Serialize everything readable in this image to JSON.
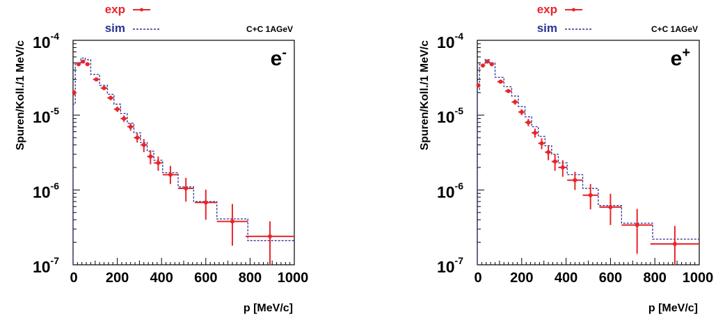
{
  "chart_data": [
    {
      "type": "scatter",
      "ylabel": "Spuren/Koll./1 MeV/c",
      "xlabel": "p [MeV/c]",
      "annotation": "C+C 1AGeV",
      "particle": {
        "base": "e",
        "sup": "-"
      },
      "xlim": [
        0,
        1000
      ],
      "ylim": [
        1e-07,
        0.0001
      ],
      "yscale": "log",
      "xticks": [
        "0",
        "200",
        "400",
        "600",
        "800",
        "1000"
      ],
      "yticks": [
        {
          "base": "10",
          "exp": "-4"
        },
        {
          "base": "10",
          "exp": "-5"
        },
        {
          "base": "10",
          "exp": "-6"
        },
        {
          "base": "10",
          "exp": "-7"
        }
      ],
      "legend": {
        "placement": "top",
        "entries": [
          {
            "label": "exp",
            "color": "#e8252a",
            "style": "points-with-errors"
          },
          {
            "label": "sim",
            "color": "#2e3192",
            "style": "dashed-histogram"
          }
        ]
      },
      "series": [
        {
          "name": "exp",
          "color": "#e8252a",
          "points": [
            {
              "x": 5,
              "y": 2e-05,
              "xerr": 5,
              "yerr_lo": 1.5e-06,
              "yerr_hi": 1.5e-06
            },
            {
              "x": 25,
              "y": 4.8e-05,
              "xerr": 10,
              "yerr_lo": 2e-06,
              "yerr_hi": 2e-06
            },
            {
              "x": 45,
              "y": 5.2e-05,
              "xerr": 10,
              "yerr_lo": 2e-06,
              "yerr_hi": 2e-06
            },
            {
              "x": 65,
              "y": 4.8e-05,
              "xerr": 10,
              "yerr_lo": 2e-06,
              "yerr_hi": 2e-06
            },
            {
              "x": 105,
              "y": 3e-05,
              "xerr": 15,
              "yerr_lo": 1.5e-06,
              "yerr_hi": 1.5e-06
            },
            {
              "x": 140,
              "y": 2.3e-05,
              "xerr": 15,
              "yerr_lo": 1.2e-06,
              "yerr_hi": 1.2e-06
            },
            {
              "x": 170,
              "y": 1.7e-05,
              "xerr": 15,
              "yerr_lo": 1.2e-06,
              "yerr_hi": 1.2e-06
            },
            {
              "x": 200,
              "y": 1.2e-05,
              "xerr": 15,
              "yerr_lo": 1e-06,
              "yerr_hi": 1e-06
            },
            {
              "x": 230,
              "y": 9e-06,
              "xerr": 15,
              "yerr_lo": 9e-07,
              "yerr_hi": 9e-07
            },
            {
              "x": 260,
              "y": 7e-06,
              "xerr": 15,
              "yerr_lo": 8e-07,
              "yerr_hi": 8e-07
            },
            {
              "x": 290,
              "y": 5e-06,
              "xerr": 15,
              "yerr_lo": 7e-07,
              "yerr_hi": 7e-07
            },
            {
              "x": 320,
              "y": 4e-06,
              "xerr": 15,
              "yerr_lo": 8e-07,
              "yerr_hi": 8e-07
            },
            {
              "x": 350,
              "y": 2.8e-06,
              "xerr": 15,
              "yerr_lo": 6e-07,
              "yerr_hi": 6e-07
            },
            {
              "x": 385,
              "y": 2.3e-06,
              "xerr": 20,
              "yerr_lo": 5e-07,
              "yerr_hi": 5e-07
            },
            {
              "x": 440,
              "y": 1.6e-06,
              "xerr": 35,
              "yerr_lo": 4e-07,
              "yerr_hi": 5e-07
            },
            {
              "x": 510,
              "y": 1.05e-06,
              "xerr": 35,
              "yerr_lo": 3.5e-07,
              "yerr_hi": 4e-07
            },
            {
              "x": 600,
              "y": 6.8e-07,
              "xerr": 50,
              "yerr_lo": 2.8e-07,
              "yerr_hi": 3.3e-07
            },
            {
              "x": 720,
              "y": 3.8e-07,
              "xerr": 70,
              "yerr_lo": 2e-07,
              "yerr_hi": 2.7e-07
            },
            {
              "x": 890,
              "y": 2.4e-07,
              "xerr": 110,
              "yerr_lo": 1.4e-07,
              "yerr_hi": 1.4e-07
            }
          ]
        },
        {
          "name": "sim",
          "color": "#2e3192",
          "bins": [
            {
              "lo": 0,
              "hi": 10,
              "y": 1.4e-05
            },
            {
              "lo": 10,
              "hi": 35,
              "y": 5e-05
            },
            {
              "lo": 35,
              "hi": 55,
              "y": 5.8e-05
            },
            {
              "lo": 55,
              "hi": 80,
              "y": 5.5e-05
            },
            {
              "lo": 80,
              "hi": 120,
              "y": 3.5e-05
            },
            {
              "lo": 120,
              "hi": 155,
              "y": 2.5e-05
            },
            {
              "lo": 155,
              "hi": 185,
              "y": 1.9e-05
            },
            {
              "lo": 185,
              "hi": 215,
              "y": 1.4e-05
            },
            {
              "lo": 215,
              "hi": 245,
              "y": 1.05e-05
            },
            {
              "lo": 245,
              "hi": 275,
              "y": 7.8e-06
            },
            {
              "lo": 275,
              "hi": 305,
              "y": 5.8e-06
            },
            {
              "lo": 305,
              "hi": 335,
              "y": 4.3e-06
            },
            {
              "lo": 335,
              "hi": 365,
              "y": 3.3e-06
            },
            {
              "lo": 365,
              "hi": 405,
              "y": 2.5e-06
            },
            {
              "lo": 405,
              "hi": 475,
              "y": 1.7e-06
            },
            {
              "lo": 475,
              "hi": 545,
              "y": 1.1e-06
            },
            {
              "lo": 545,
              "hi": 650,
              "y": 7e-07
            },
            {
              "lo": 650,
              "hi": 790,
              "y": 4.1e-07
            },
            {
              "lo": 790,
              "hi": 1000,
              "y": 2.1e-07
            }
          ]
        }
      ]
    },
    {
      "type": "scatter",
      "ylabel": "Spuren/Koll./1 MeV/c",
      "xlabel": "p [MeV/c]",
      "annotation": "C+C 1AGeV",
      "particle": {
        "base": "e",
        "sup": "+"
      },
      "xlim": [
        0,
        1000
      ],
      "ylim": [
        1e-07,
        0.0001
      ],
      "yscale": "log",
      "xticks": [
        "0",
        "200",
        "400",
        "600",
        "800",
        "1000"
      ],
      "yticks": [
        {
          "base": "10",
          "exp": "-4"
        },
        {
          "base": "10",
          "exp": "-5"
        },
        {
          "base": "10",
          "exp": "-6"
        },
        {
          "base": "10",
          "exp": "-7"
        }
      ],
      "legend": {
        "placement": "top",
        "entries": [
          {
            "label": "exp",
            "color": "#e8252a",
            "style": "points-with-errors"
          },
          {
            "label": "sim",
            "color": "#2e3192",
            "style": "dashed-histogram"
          }
        ]
      },
      "series": [
        {
          "name": "exp",
          "color": "#e8252a",
          "points": [
            {
              "x": 5,
              "y": 2.5e-05,
              "xerr": 5,
              "yerr_lo": 1.5e-06,
              "yerr_hi": 1.5e-06
            },
            {
              "x": 25,
              "y": 4.6e-05,
              "xerr": 10,
              "yerr_lo": 2e-06,
              "yerr_hi": 2e-06
            },
            {
              "x": 45,
              "y": 5.2e-05,
              "xerr": 10,
              "yerr_lo": 2e-06,
              "yerr_hi": 2e-06
            },
            {
              "x": 65,
              "y": 4.8e-05,
              "xerr": 10,
              "yerr_lo": 2e-06,
              "yerr_hi": 2e-06
            },
            {
              "x": 105,
              "y": 2.8e-05,
              "xerr": 15,
              "yerr_lo": 1.5e-06,
              "yerr_hi": 1.5e-06
            },
            {
              "x": 140,
              "y": 2.1e-05,
              "xerr": 15,
              "yerr_lo": 1.2e-06,
              "yerr_hi": 1.2e-06
            },
            {
              "x": 170,
              "y": 1.5e-05,
              "xerr": 15,
              "yerr_lo": 1.2e-06,
              "yerr_hi": 1.2e-06
            },
            {
              "x": 200,
              "y": 1.1e-05,
              "xerr": 15,
              "yerr_lo": 1e-06,
              "yerr_hi": 1e-06
            },
            {
              "x": 230,
              "y": 8e-06,
              "xerr": 15,
              "yerr_lo": 9e-07,
              "yerr_hi": 9e-07
            },
            {
              "x": 260,
              "y": 5.8e-06,
              "xerr": 15,
              "yerr_lo": 8e-07,
              "yerr_hi": 8e-07
            },
            {
              "x": 290,
              "y": 4.2e-06,
              "xerr": 15,
              "yerr_lo": 7e-07,
              "yerr_hi": 7e-07
            },
            {
              "x": 320,
              "y": 3.2e-06,
              "xerr": 15,
              "yerr_lo": 7e-07,
              "yerr_hi": 7e-07
            },
            {
              "x": 350,
              "y": 2.4e-06,
              "xerr": 15,
              "yerr_lo": 6e-07,
              "yerr_hi": 6e-07
            },
            {
              "x": 385,
              "y": 2e-06,
              "xerr": 20,
              "yerr_lo": 5e-07,
              "yerr_hi": 5e-07
            },
            {
              "x": 440,
              "y": 1.35e-06,
              "xerr": 35,
              "yerr_lo": 3.5e-07,
              "yerr_hi": 4e-07
            },
            {
              "x": 510,
              "y": 8.5e-07,
              "xerr": 35,
              "yerr_lo": 3e-07,
              "yerr_hi": 3.5e-07
            },
            {
              "x": 600,
              "y": 5.9e-07,
              "xerr": 50,
              "yerr_lo": 2.5e-07,
              "yerr_hi": 3e-07
            },
            {
              "x": 720,
              "y": 3.4e-07,
              "xerr": 70,
              "yerr_lo": 2e-07,
              "yerr_hi": 2.2e-07
            },
            {
              "x": 890,
              "y": 1.9e-07,
              "xerr": 110,
              "yerr_lo": 1e-07,
              "yerr_hi": 1.4e-07
            }
          ]
        },
        {
          "name": "sim",
          "color": "#2e3192",
          "bins": [
            {
              "lo": 0,
              "hi": 10,
              "y": 2.2e-05
            },
            {
              "lo": 10,
              "hi": 35,
              "y": 4.8e-05
            },
            {
              "lo": 35,
              "hi": 55,
              "y": 5.5e-05
            },
            {
              "lo": 55,
              "hi": 80,
              "y": 5e-05
            },
            {
              "lo": 80,
              "hi": 120,
              "y": 3.2e-05
            },
            {
              "lo": 120,
              "hi": 155,
              "y": 2.4e-05
            },
            {
              "lo": 155,
              "hi": 185,
              "y": 1.8e-05
            },
            {
              "lo": 185,
              "hi": 215,
              "y": 1.3e-05
            },
            {
              "lo": 215,
              "hi": 245,
              "y": 9.5e-06
            },
            {
              "lo": 245,
              "hi": 275,
              "y": 7e-06
            },
            {
              "lo": 275,
              "hi": 305,
              "y": 5.2e-06
            },
            {
              "lo": 305,
              "hi": 335,
              "y": 3.9e-06
            },
            {
              "lo": 335,
              "hi": 365,
              "y": 3e-06
            },
            {
              "lo": 365,
              "hi": 405,
              "y": 2.3e-06
            },
            {
              "lo": 405,
              "hi": 475,
              "y": 1.6e-06
            },
            {
              "lo": 475,
              "hi": 545,
              "y": 1.05e-06
            },
            {
              "lo": 545,
              "hi": 650,
              "y": 6.2e-07
            },
            {
              "lo": 650,
              "hi": 790,
              "y": 3.6e-07
            },
            {
              "lo": 790,
              "hi": 1000,
              "y": 2.2e-07
            }
          ]
        }
      ]
    }
  ]
}
